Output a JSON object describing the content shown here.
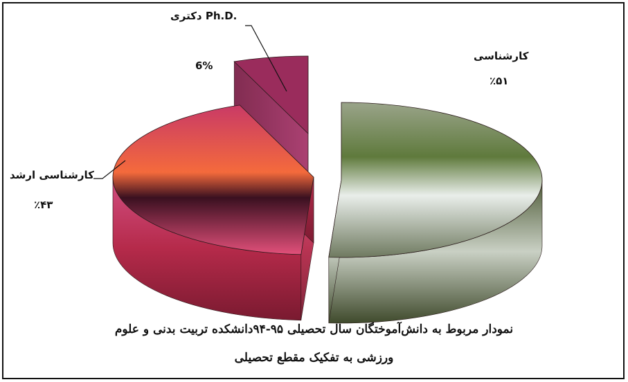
{
  "chart_data": {
    "type": "pie",
    "style": "3d-exploded",
    "slices": [
      {
        "name_label": "کارشناسی",
        "value_label": "٪۵۱",
        "value": 51,
        "color": "#b9c7a0"
      },
      {
        "name_label": "کارشناسی ارشد",
        "value_label": "٪۴۳",
        "value": 43,
        "color": "#d8486e"
      },
      {
        "name_label": "دکتری Ph.D.",
        "value_label": "6%",
        "value": 6,
        "color": "#9a2c5c"
      }
    ],
    "caption_line1": "نمودار مربوط به دانش‌آموختگان سال تحصیلی ۹۵-۹۴دانشکده تربیت بدنی و علوم",
    "caption_line2": "ورزشی به تفکیک مقطع تحصیلی"
  }
}
